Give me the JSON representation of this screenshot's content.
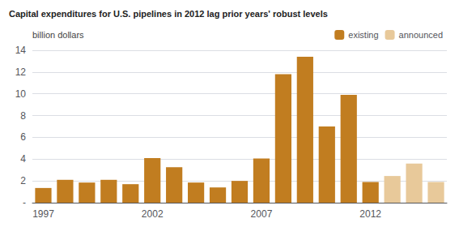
{
  "chart_data": {
    "type": "bar",
    "title": "Capital expenditures for U.S. pipelines in 2012 lag prior years' robust levels",
    "ylabel": "billion dollars",
    "categories": [
      "1997",
      null,
      null,
      null,
      null,
      "2002",
      null,
      null,
      null,
      null,
      "2007",
      null,
      null,
      null,
      null,
      "2012",
      null,
      null,
      null
    ],
    "series": [
      {
        "name": "existing",
        "color": "#C17D20",
        "values": [
          1.35,
          2.1,
          1.85,
          2.1,
          1.7,
          4.1,
          3.25,
          1.85,
          1.4,
          2.0,
          4.05,
          11.8,
          13.4,
          7.0,
          9.9,
          1.9,
          0,
          0,
          0
        ]
      },
      {
        "name": "announced",
        "color": "#E8C99A",
        "values": [
          0,
          0,
          0,
          0,
          0,
          0,
          0,
          0,
          0,
          0,
          0,
          0,
          0,
          0,
          0,
          0,
          2.45,
          3.6,
          1.9
        ]
      }
    ],
    "ylim": [
      0,
      14
    ],
    "yticks": [
      {
        "value": 0,
        "label": "-"
      },
      2,
      4,
      6,
      8,
      10,
      12,
      14
    ],
    "grid": true,
    "legend": "upper right"
  }
}
